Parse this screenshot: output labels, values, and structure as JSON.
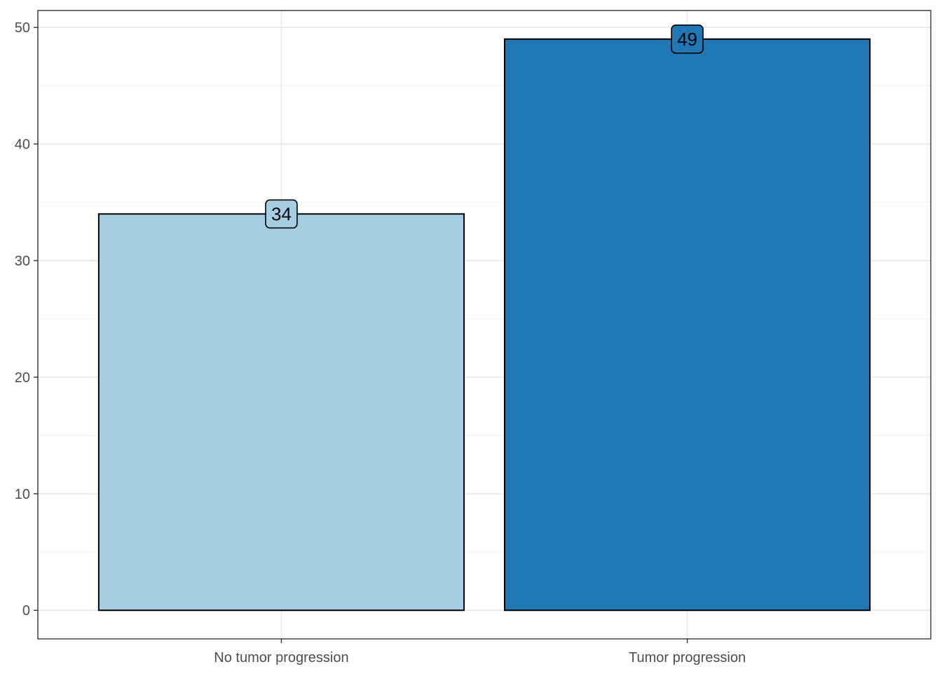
{
  "chart_data": {
    "type": "bar",
    "title": "",
    "xlabel": "",
    "ylabel": "",
    "categories": [
      "No tumor progression",
      "Tumor progression"
    ],
    "values": [
      34,
      49
    ],
    "data_labels": [
      "34",
      "49"
    ],
    "colors": [
      "#a6cee3",
      "#1f78b4"
    ],
    "ylim": [
      -2.45,
      51.45
    ],
    "yticks": [
      0,
      10,
      20,
      30,
      40,
      50
    ],
    "ytick_labels": [
      "0",
      "10",
      "20",
      "30",
      "40",
      "50"
    ],
    "grid": true,
    "legend": "none"
  }
}
